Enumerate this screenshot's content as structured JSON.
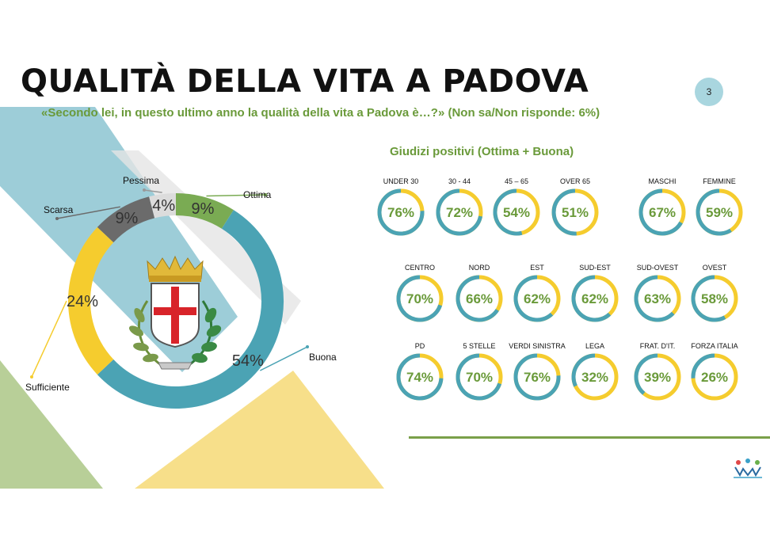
{
  "header": {
    "title": "QUALITÀ DELLA VITA A PADOVA",
    "subtitle": "«Secondo lei, in questo ultimo anno la qualità della vita a Padova è…?» (Non sa/Non risponde:  6%)",
    "page_number": "3"
  },
  "colors": {
    "ottima": "#7aab53",
    "buona": "#4ba3b4",
    "sufficiente": "#f5cc2e",
    "scarsa": "#6b6b6b",
    "pessima": "#dcdcdc",
    "gauge_positive": "#4ba3b4",
    "gauge_rest": "#f5cc2e",
    "accent_text": "#6a9a3a"
  },
  "emblem": {
    "icon": "padova-coat-of-arms-icon"
  },
  "logo": {
    "icon": "winpoll-logo-icon"
  },
  "chart_data": [
    {
      "type": "pie",
      "variant": "donut",
      "slices": [
        {
          "label": "Ottima",
          "value": 9,
          "value_label": "9%"
        },
        {
          "label": "Buona",
          "value": 54,
          "value_label": "54%"
        },
        {
          "label": "Sufficiente",
          "value": 24,
          "value_label": "24%"
        },
        {
          "label": "Scarsa",
          "value": 9,
          "value_label": "9%"
        },
        {
          "label": "Pessima",
          "value": 4,
          "value_label": "4%"
        }
      ]
    },
    {
      "type": "pie",
      "variant": "gauge-grid",
      "title": "Giudizi positivi (Ottima + Buona)",
      "rows": [
        [
          {
            "label": "UNDER 30",
            "value": 76,
            "value_label": "76%"
          },
          {
            "label": "30 - 44",
            "value": 72,
            "value_label": "72%"
          },
          {
            "label": "45 – 65",
            "value": 54,
            "value_label": "54%"
          },
          {
            "label": "OVER 65",
            "value": 51,
            "value_label": "51%"
          },
          {
            "label": "MASCHI",
            "value": 67,
            "value_label": "67%"
          },
          {
            "label": "FEMMINE",
            "value": 59,
            "value_label": "59%"
          }
        ],
        [
          {
            "label": "CENTRO",
            "value": 70,
            "value_label": "70%"
          },
          {
            "label": "NORD",
            "value": 66,
            "value_label": "66%"
          },
          {
            "label": "EST",
            "value": 62,
            "value_label": "62%"
          },
          {
            "label": "SUD-EST",
            "value": 62,
            "value_label": "62%"
          },
          {
            "label": "SUD-OVEST",
            "value": 63,
            "value_label": "63%"
          },
          {
            "label": "OVEST",
            "value": 58,
            "value_label": "58%"
          }
        ],
        [
          {
            "label": "PD",
            "value": 74,
            "value_label": "74%"
          },
          {
            "label": "5 STELLE",
            "value": 70,
            "value_label": "70%"
          },
          {
            "label": "VERDI SINISTRA",
            "value": 76,
            "value_label": "76%"
          },
          {
            "label": "LEGA",
            "value": 32,
            "value_label": "32%"
          },
          {
            "label": "FRAT. D'IT.",
            "value": 39,
            "value_label": "39%"
          },
          {
            "label": "FORZA ITALIA",
            "value": 26,
            "value_label": "26%"
          }
        ]
      ]
    }
  ]
}
